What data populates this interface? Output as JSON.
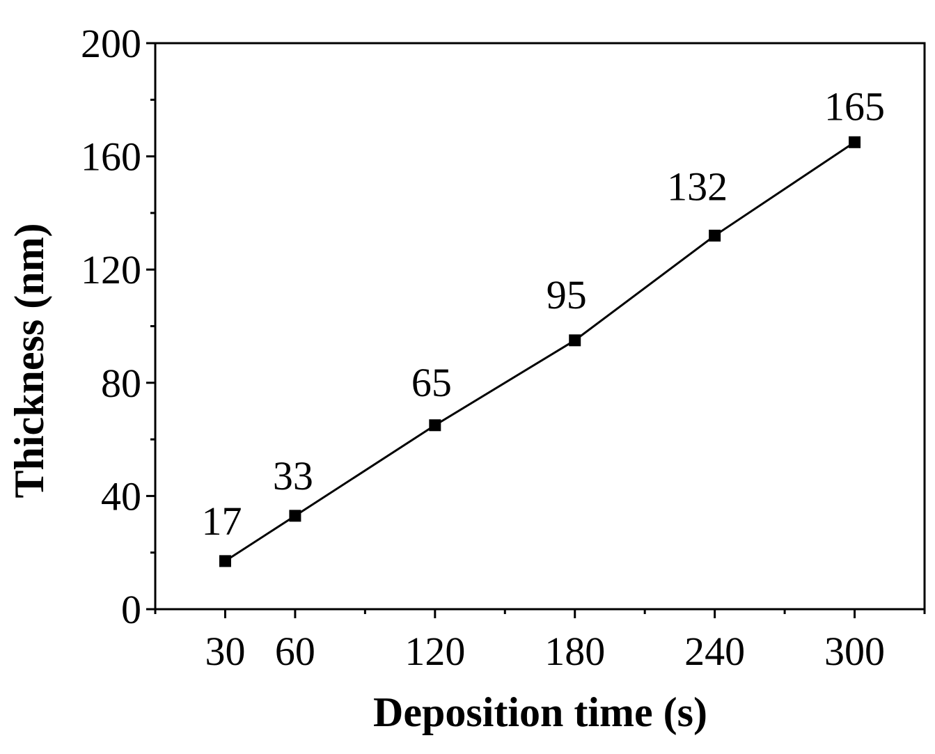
{
  "chart_data": {
    "type": "line",
    "title": "",
    "xlabel": "Deposition time (s)",
    "ylabel": "Thickness (nm)",
    "x": [
      30,
      60,
      120,
      180,
      240,
      300
    ],
    "series": [
      {
        "values": [
          17,
          33,
          65,
          95,
          132,
          165
        ],
        "marker": "square",
        "color": "#000000"
      }
    ],
    "data_labels": [
      "17",
      "33",
      "65",
      "95",
      "132",
      "165"
    ],
    "xlim": [
      0,
      330
    ],
    "ylim": [
      0,
      200
    ],
    "xticks": [
      30,
      60,
      120,
      180,
      240,
      300
    ],
    "xtick_labels": [
      "30",
      "60",
      "120",
      "180",
      "240",
      "300"
    ],
    "yticks": [
      0,
      40,
      80,
      120,
      160,
      200
    ],
    "ytick_labels": [
      "0",
      "40",
      "80",
      "120",
      "160",
      "200"
    ],
    "grid": false,
    "legend": "none"
  }
}
